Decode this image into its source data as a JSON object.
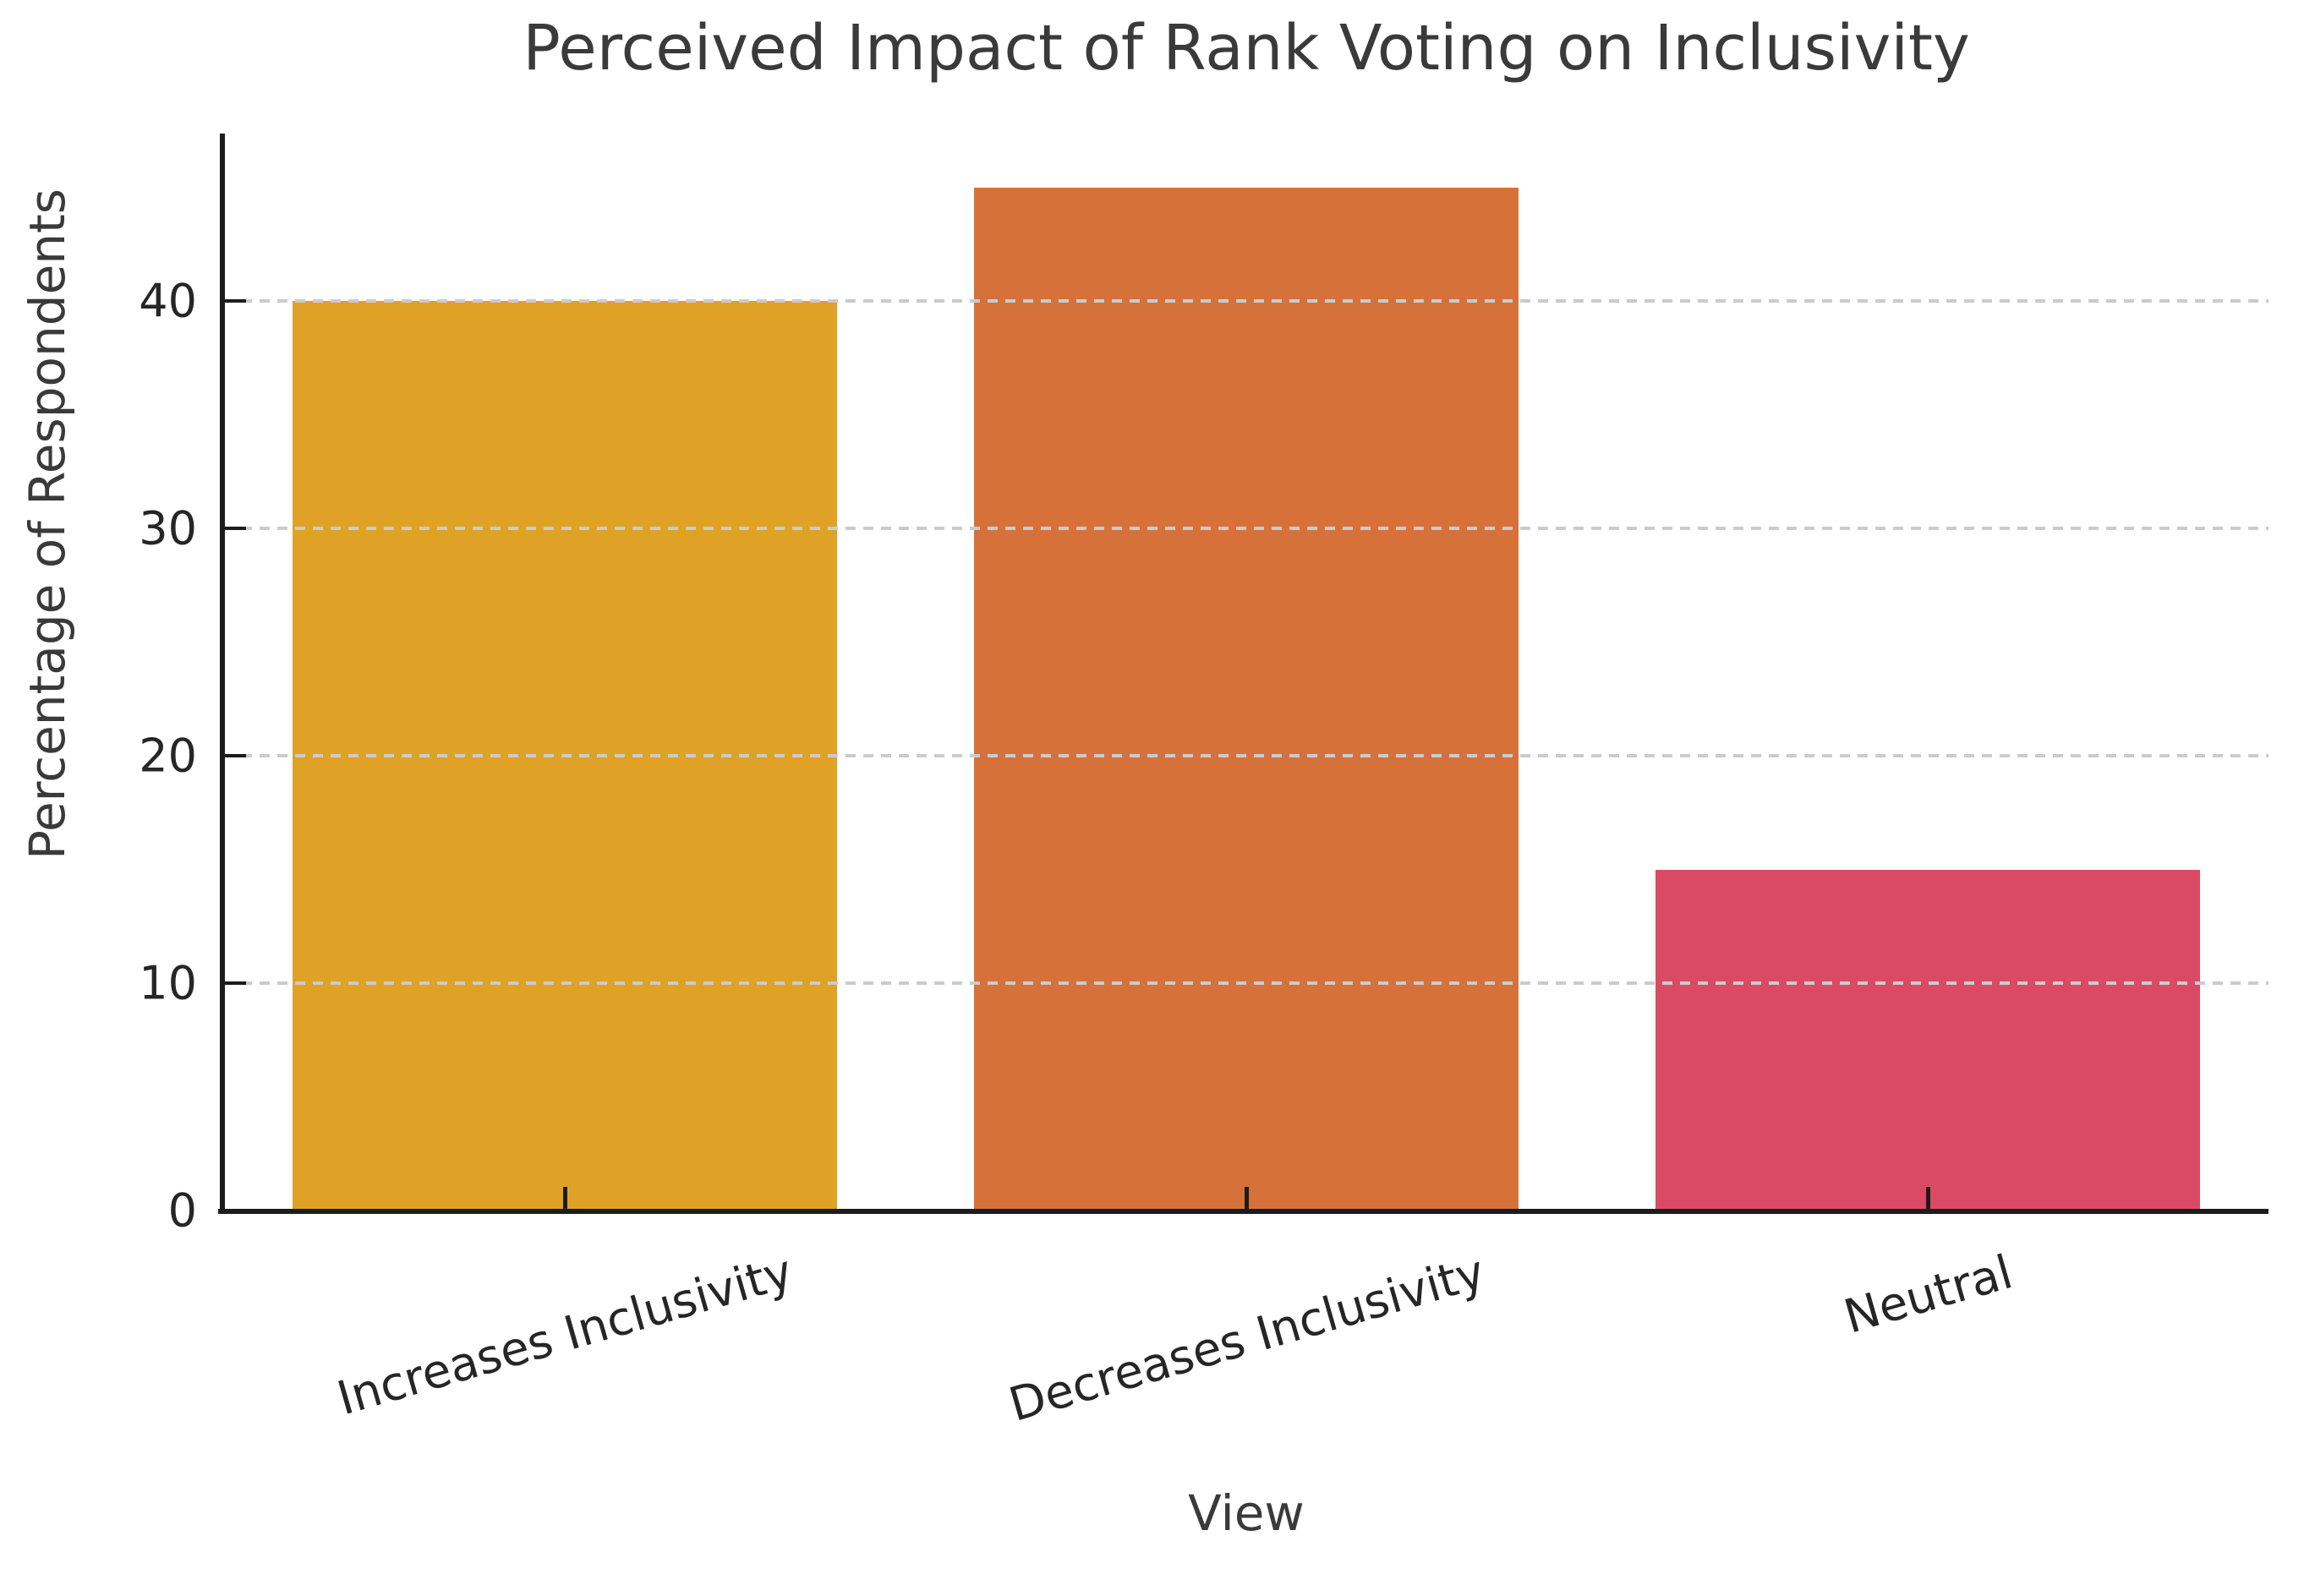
{
  "title": "Perceived Impact of Rank Voting on Inclusivity",
  "chart_data": {
    "type": "bar",
    "title": "Perceived Impact of Rank Voting on Inclusivity",
    "xlabel": "View",
    "ylabel": "Percentage of Respondents",
    "categories": [
      "Increases Inclusivity",
      "Decreases Inclusivity",
      "Neutral"
    ],
    "values": [
      40,
      45,
      15
    ],
    "bar_colors": [
      "#dfa226",
      "#d7713a",
      "#db4a64"
    ],
    "yticks": [
      0,
      10,
      20,
      30,
      40
    ],
    "ylim": [
      0,
      47
    ],
    "grid": "horizontal-dashed",
    "gridline_color": "#cbcbcb",
    "spine_color": "#1c1c1c",
    "text_color": "#3a3a3a",
    "legend": "none",
    "xtick_label_rotation_deg": 16
  }
}
